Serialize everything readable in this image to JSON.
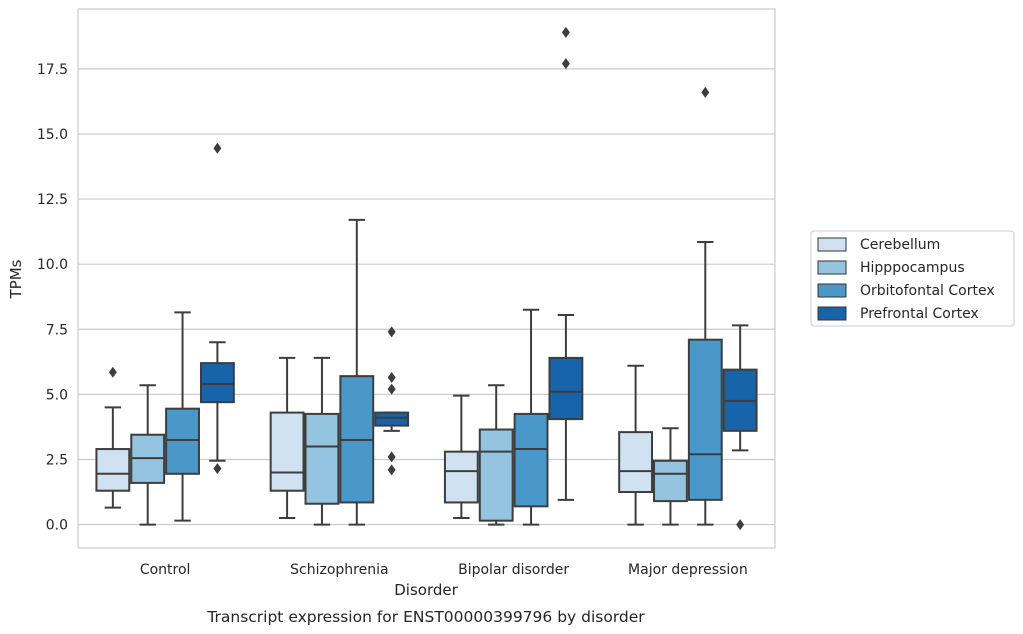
{
  "chart_data": {
    "type": "boxplot",
    "caption": "Transcript expression for ENST00000399796 by disorder",
    "xlabel": "Disorder",
    "ylabel": "TPMs",
    "ylim": [
      -0.9,
      19.8
    ],
    "yticks": [
      0.0,
      2.5,
      5.0,
      7.5,
      10.0,
      12.5,
      15.0,
      17.5
    ],
    "ytick_labels": [
      "0.0",
      "2.5",
      "5.0",
      "7.5",
      "10.0",
      "12.5",
      "15.0",
      "17.5"
    ],
    "grid": "horizontal",
    "legend_position": "right",
    "categories": [
      "Control",
      "Schizophrenia",
      "Bipolar disorder",
      "Major depression"
    ],
    "series": [
      {
        "name": "Cerebellum",
        "color": "#d0e1f2",
        "boxes": [
          {
            "whislo": 0.65,
            "q1": 1.3,
            "med": 1.95,
            "q3": 2.9,
            "whishi": 4.5,
            "fliers": [
              5.85
            ]
          },
          {
            "whislo": 0.25,
            "q1": 1.3,
            "med": 2.0,
            "q3": 4.3,
            "whishi": 6.4,
            "fliers": []
          },
          {
            "whislo": 0.25,
            "q1": 0.85,
            "med": 2.05,
            "q3": 2.8,
            "whishi": 4.95,
            "fliers": []
          },
          {
            "whislo": 0.0,
            "q1": 1.25,
            "med": 2.05,
            "q3": 3.55,
            "whishi": 6.1,
            "fliers": []
          }
        ]
      },
      {
        "name": "Hipppocampus",
        "color": "#94c4df",
        "boxes": [
          {
            "whislo": 0.0,
            "q1": 1.6,
            "med": 2.55,
            "q3": 3.45,
            "whishi": 5.35,
            "fliers": []
          },
          {
            "whislo": 0.0,
            "q1": 0.8,
            "med": 3.0,
            "q3": 4.25,
            "whishi": 6.4,
            "fliers": []
          },
          {
            "whislo": 0.0,
            "q1": 0.15,
            "med": 2.8,
            "q3": 3.65,
            "whishi": 5.35,
            "fliers": []
          },
          {
            "whislo": 0.0,
            "q1": 0.9,
            "med": 1.95,
            "q3": 2.45,
            "whishi": 3.7,
            "fliers": []
          }
        ]
      },
      {
        "name": "Orbitofontal Cortex",
        "color": "#4a98c9",
        "boxes": [
          {
            "whislo": 0.15,
            "q1": 1.95,
            "med": 3.25,
            "q3": 4.45,
            "whishi": 8.15,
            "fliers": []
          },
          {
            "whislo": 0.0,
            "q1": 0.85,
            "med": 3.25,
            "q3": 5.7,
            "whishi": 11.7,
            "fliers": []
          },
          {
            "whislo": 0.0,
            "q1": 0.7,
            "med": 2.9,
            "q3": 4.25,
            "whishi": 8.25,
            "fliers": []
          },
          {
            "whislo": 0.0,
            "q1": 0.95,
            "med": 2.7,
            "q3": 7.1,
            "whishi": 10.85,
            "fliers": [
              16.6
            ]
          }
        ]
      },
      {
        "name": "Prefrontal Cortex",
        "color": "#1764ab",
        "boxes": [
          {
            "whislo": 2.45,
            "q1": 4.7,
            "med": 5.4,
            "q3": 6.2,
            "whishi": 7.0,
            "fliers": [
              14.45,
              2.15
            ]
          },
          {
            "whislo": 3.6,
            "q1": 3.8,
            "med": 4.1,
            "q3": 4.3,
            "whishi": 4.3,
            "fliers": [
              7.4,
              5.65,
              5.2,
              2.6,
              2.1
            ]
          },
          {
            "whislo": 0.95,
            "q1": 4.05,
            "med": 5.1,
            "q3": 6.4,
            "whishi": 8.05,
            "fliers": [
              18.9,
              17.7
            ]
          },
          {
            "whislo": 2.85,
            "q1": 3.6,
            "med": 4.75,
            "q3": 5.95,
            "whishi": 7.65,
            "fliers": [
              0.0
            ]
          }
        ]
      }
    ]
  }
}
